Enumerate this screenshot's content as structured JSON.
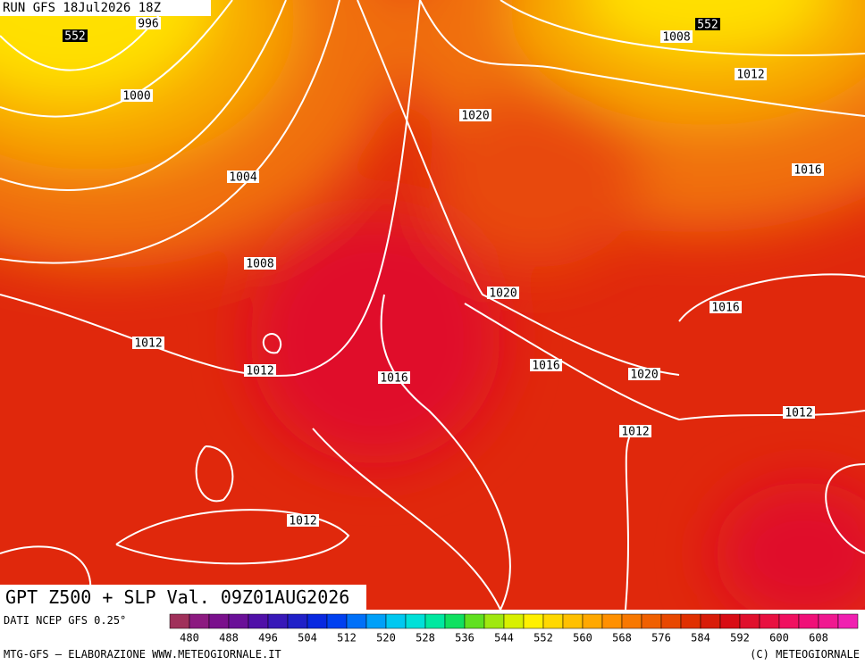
{
  "header": {
    "run": "RUN GFS 18Jul2026 18Z"
  },
  "map": {
    "labels": [
      "996",
      "552",
      "1000",
      "1004",
      "1008",
      "1012",
      "1012",
      "1016",
      "1020",
      "1020",
      "1016",
      "1020",
      "1012",
      "1016",
      "1012",
      "1016",
      "1012",
      "1008",
      "552",
      "1012"
    ]
  },
  "footer": {
    "title": "GPT Z500 + SLP Val. 09Z01AUG2026",
    "source": "DATI NCEP GFS 0.25°",
    "credit": "MTG-GFS — ELABORAZIONE WWW.METEOGIORNALE.IT",
    "copyright": "(C) METEOGIORNALE"
  },
  "legend": {
    "ticks": [
      "480",
      "488",
      "496",
      "504",
      "512",
      "520",
      "528",
      "536",
      "544",
      "552",
      "560",
      "568",
      "576",
      "584",
      "592",
      "600",
      "608"
    ],
    "colors": [
      "#a0305a",
      "#8c1a80",
      "#7a108c",
      "#6a1098",
      "#5010a8",
      "#3818b8",
      "#2020c8",
      "#0828e0",
      "#0040f0",
      "#0070f8",
      "#00a0f8",
      "#00c8f0",
      "#00e0d8",
      "#00e8a0",
      "#10e060",
      "#60e020",
      "#a0e810",
      "#d8f000",
      "#fff000",
      "#ffd800",
      "#ffc000",
      "#ffa800",
      "#ff9000",
      "#f87800",
      "#f06000",
      "#e84800",
      "#e03000",
      "#d81c08",
      "#d80c14",
      "#e0102c",
      "#e81040",
      "#f01060",
      "#f01078",
      "#f01890",
      "#f020b0"
    ]
  }
}
